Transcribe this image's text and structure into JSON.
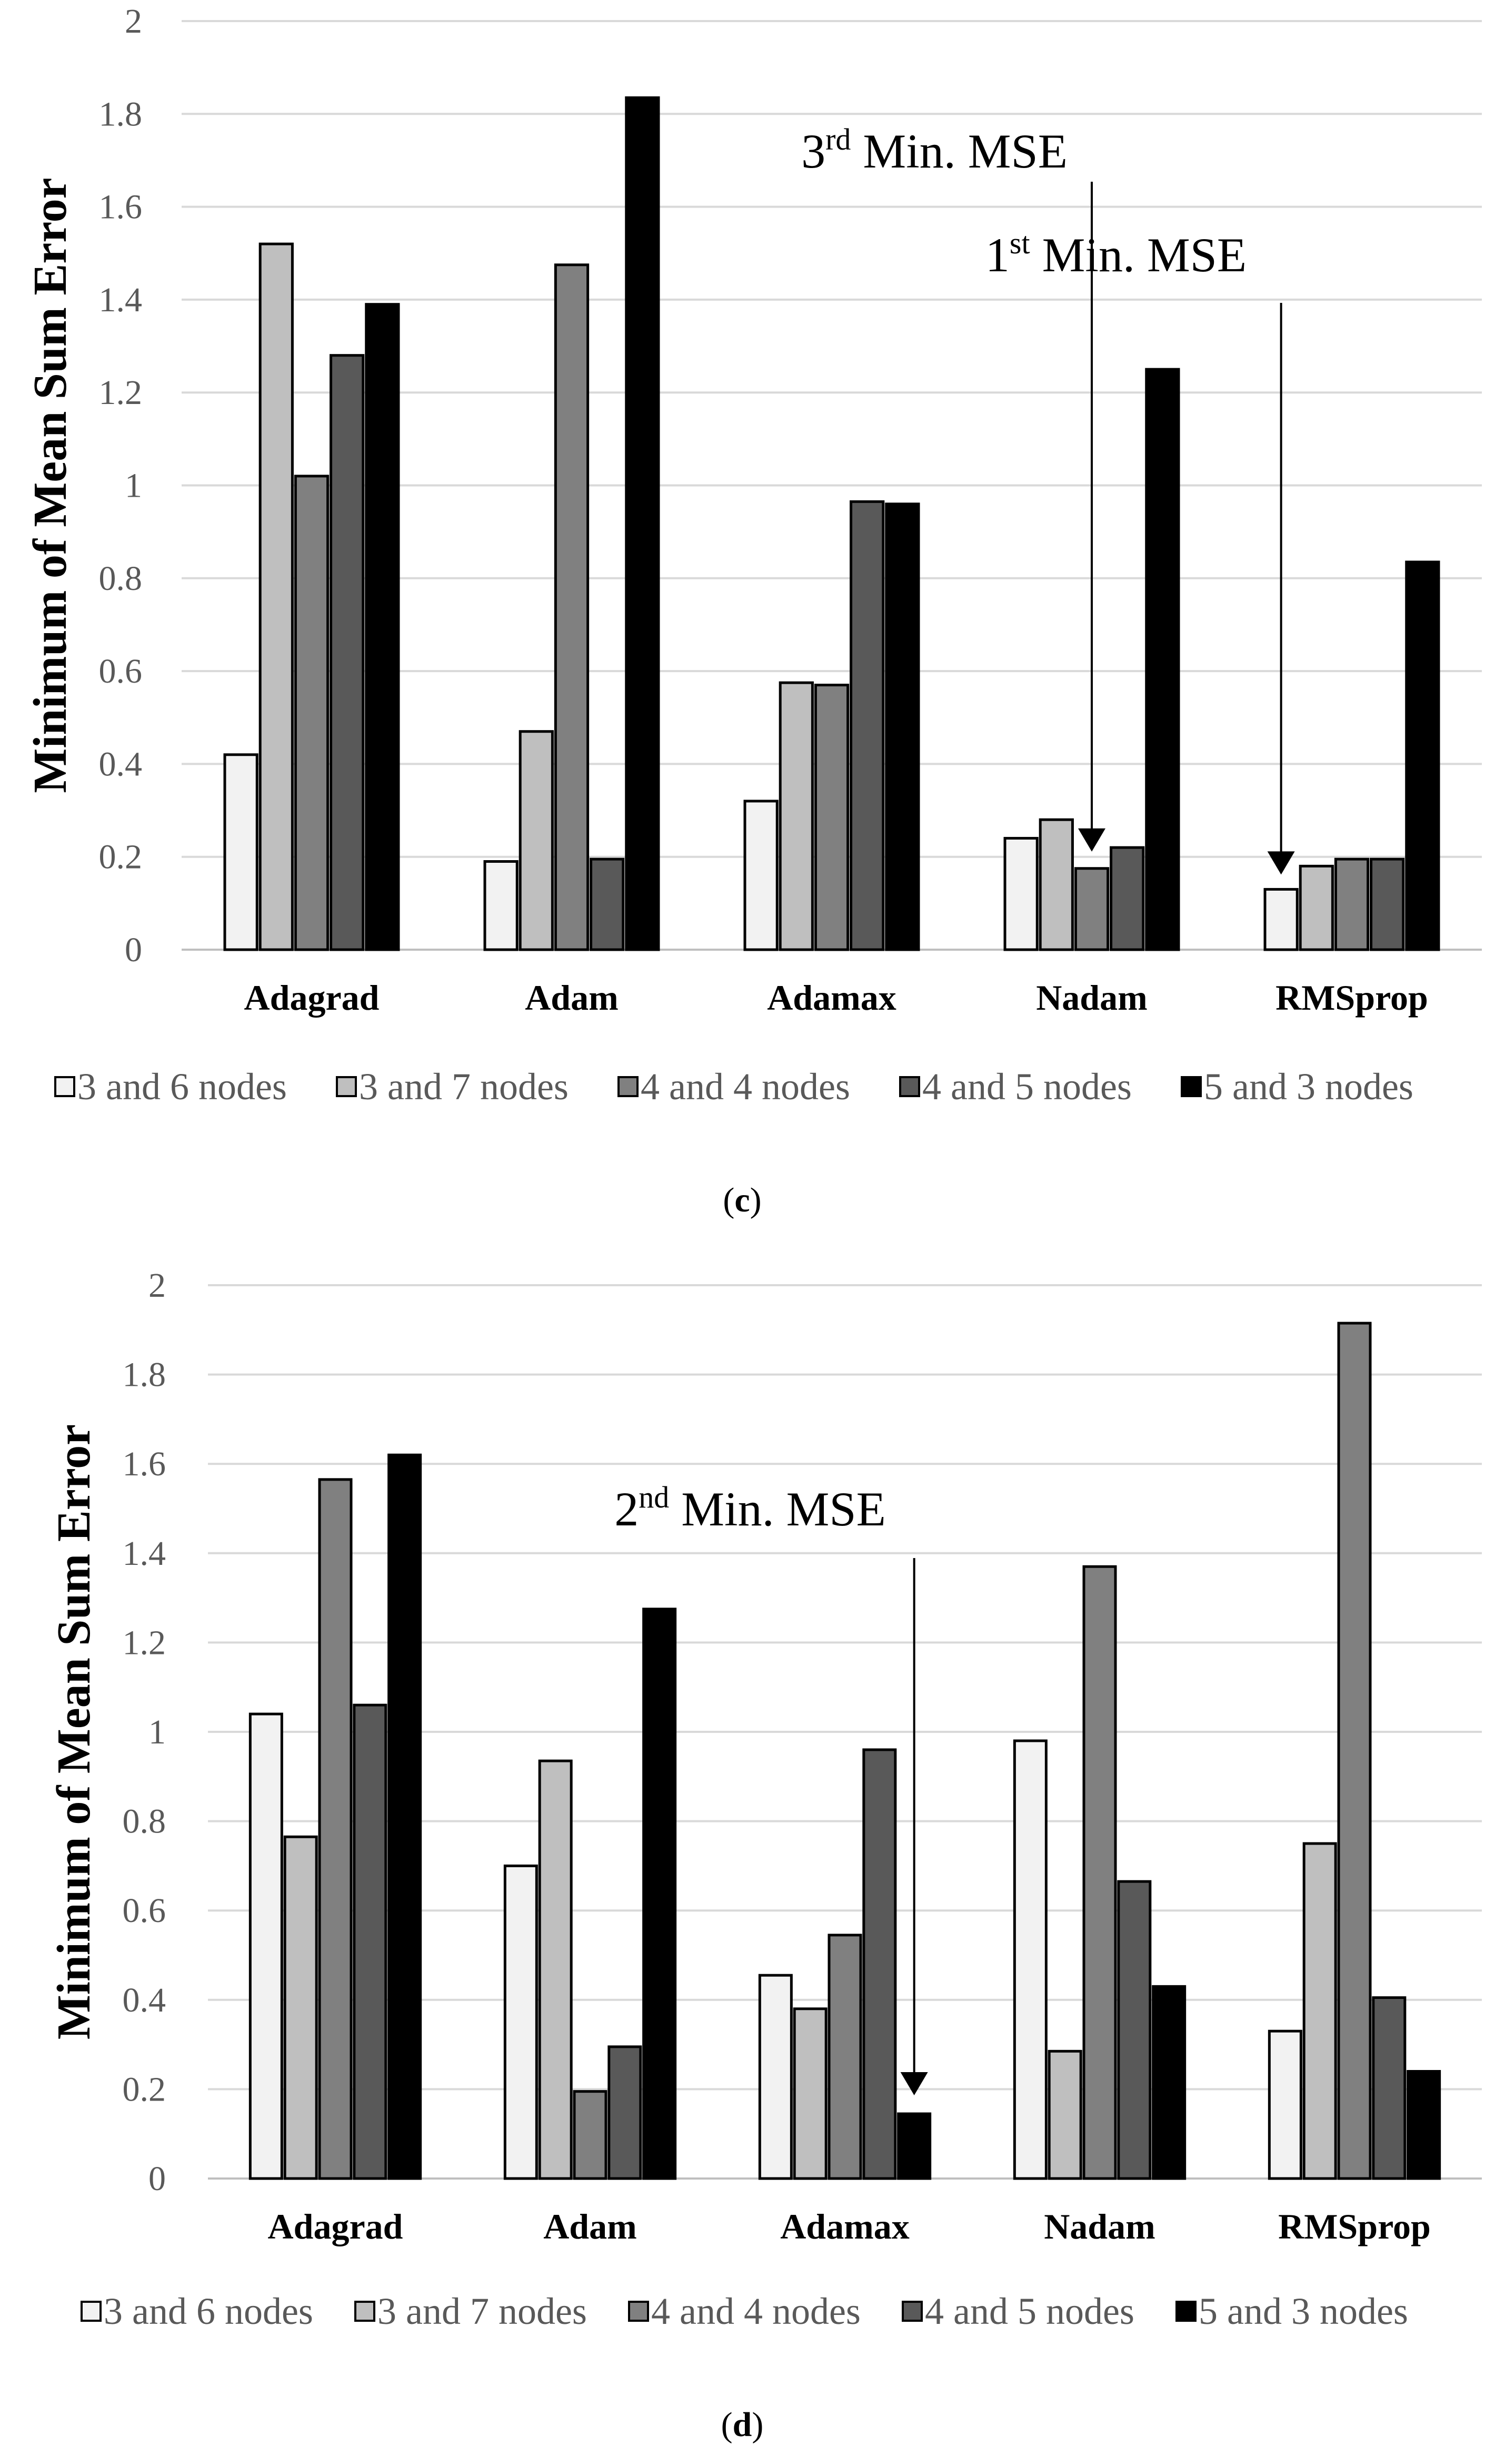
{
  "chart_data": [
    {
      "type": "bar",
      "panel_label": "c",
      "categories": [
        "Adagrad",
        "Adam",
        "Adamax",
        "Nadam",
        "RMSprop"
      ],
      "ylabel": "Minimum of Mean Sum Error",
      "ylim": [
        0,
        2
      ],
      "yticks": [
        "0",
        "0.2",
        "0.4",
        "0.6",
        "0.8",
        "1",
        "1.2",
        "1.4",
        "1.6",
        "1.8",
        "2"
      ],
      "grid": true,
      "legend_position": "bottom",
      "series": [
        {
          "name": "3 and 6 nodes",
          "color": "#f2f2f2",
          "values": [
            0.42,
            0.19,
            0.32,
            0.24,
            0.13
          ]
        },
        {
          "name": "3 and 7 nodes",
          "color": "#bfbfbf",
          "values": [
            1.52,
            0.47,
            0.575,
            0.28,
            0.18
          ]
        },
        {
          "name": "4 and 4 nodes",
          "color": "#808080",
          "values": [
            1.02,
            1.475,
            0.57,
            0.175,
            0.195
          ]
        },
        {
          "name": "4 and 5 nodes",
          "color": "#595959",
          "values": [
            1.28,
            0.195,
            0.965,
            0.22,
            0.195
          ]
        },
        {
          "name": "5 and 3 nodes",
          "color": "#000000",
          "values": [
            1.39,
            1.835,
            0.96,
            1.25,
            0.835
          ]
        }
      ],
      "annotations": [
        {
          "prefix": "3",
          "sup": "rd",
          "rest": " Min. MSE",
          "category": "Nadam",
          "series": "4 and 4 nodes"
        },
        {
          "prefix": "1",
          "sup": "st",
          "rest": " Min. MSE",
          "category": "RMSprop",
          "series": "3 and 6 nodes"
        }
      ]
    },
    {
      "type": "bar",
      "panel_label": "d",
      "categories": [
        "Adagrad",
        "Adam",
        "Adamax",
        "Nadam",
        "RMSprop"
      ],
      "ylabel": "Minimum of Mean Sum Error",
      "ylim": [
        0,
        2
      ],
      "yticks": [
        "0",
        "0.2",
        "0.4",
        "0.6",
        "0.8",
        "1",
        "1.2",
        "1.4",
        "1.6",
        "1.8",
        "2"
      ],
      "grid": true,
      "legend_position": "bottom",
      "series": [
        {
          "name": "3 and 6 nodes",
          "color": "#f2f2f2",
          "values": [
            1.04,
            0.7,
            0.455,
            0.98,
            0.33
          ]
        },
        {
          "name": "3 and 7 nodes",
          "color": "#bfbfbf",
          "values": [
            0.765,
            0.935,
            0.38,
            0.285,
            0.75
          ]
        },
        {
          "name": "4 and 4 nodes",
          "color": "#808080",
          "values": [
            1.565,
            0.195,
            0.545,
            1.37,
            1.915
          ]
        },
        {
          "name": "4 and 5 nodes",
          "color": "#595959",
          "values": [
            1.06,
            0.295,
            0.96,
            0.665,
            0.405
          ]
        },
        {
          "name": "5 and 3 nodes",
          "color": "#000000",
          "values": [
            1.62,
            1.275,
            0.145,
            0.43,
            0.24
          ]
        }
      ],
      "annotations": [
        {
          "prefix": "2",
          "sup": "nd",
          "rest": " Min. MSE",
          "category": "Adamax",
          "series": "5 and 3 nodes"
        }
      ]
    }
  ]
}
